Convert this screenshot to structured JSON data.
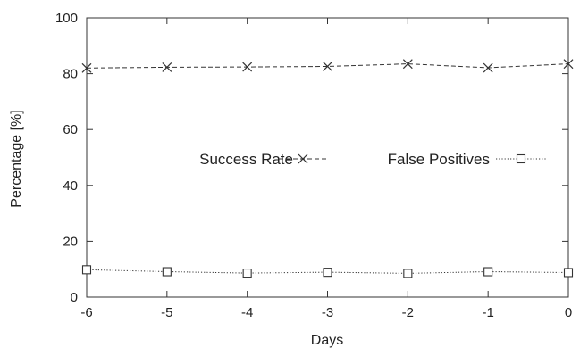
{
  "chart_data": {
    "type": "line",
    "title": "",
    "xlabel": "Days",
    "ylabel": "Percentage [%]",
    "x": [
      -6,
      -5,
      -4,
      -3,
      -2,
      -1,
      0
    ],
    "xlim": [
      -6,
      0
    ],
    "ylim": [
      0,
      100
    ],
    "xticks": [
      "-6",
      "-5",
      "-4",
      "-3",
      "-2",
      "-1",
      "0"
    ],
    "yticks": [
      "0",
      "20",
      "40",
      "60",
      "80",
      "100"
    ],
    "grid": false,
    "legend_position": "center",
    "series": [
      {
        "name": "Success Rate",
        "marker": "x",
        "line_style": "dashed",
        "color": "#333333",
        "values": [
          82.0,
          82.3,
          82.4,
          82.6,
          83.5,
          82.1,
          83.5
        ]
      },
      {
        "name": "False Positives",
        "marker": "square",
        "line_style": "dotted",
        "color": "#333333",
        "values": [
          9.8,
          9.1,
          8.6,
          8.9,
          8.5,
          9.1,
          8.8
        ]
      }
    ]
  }
}
